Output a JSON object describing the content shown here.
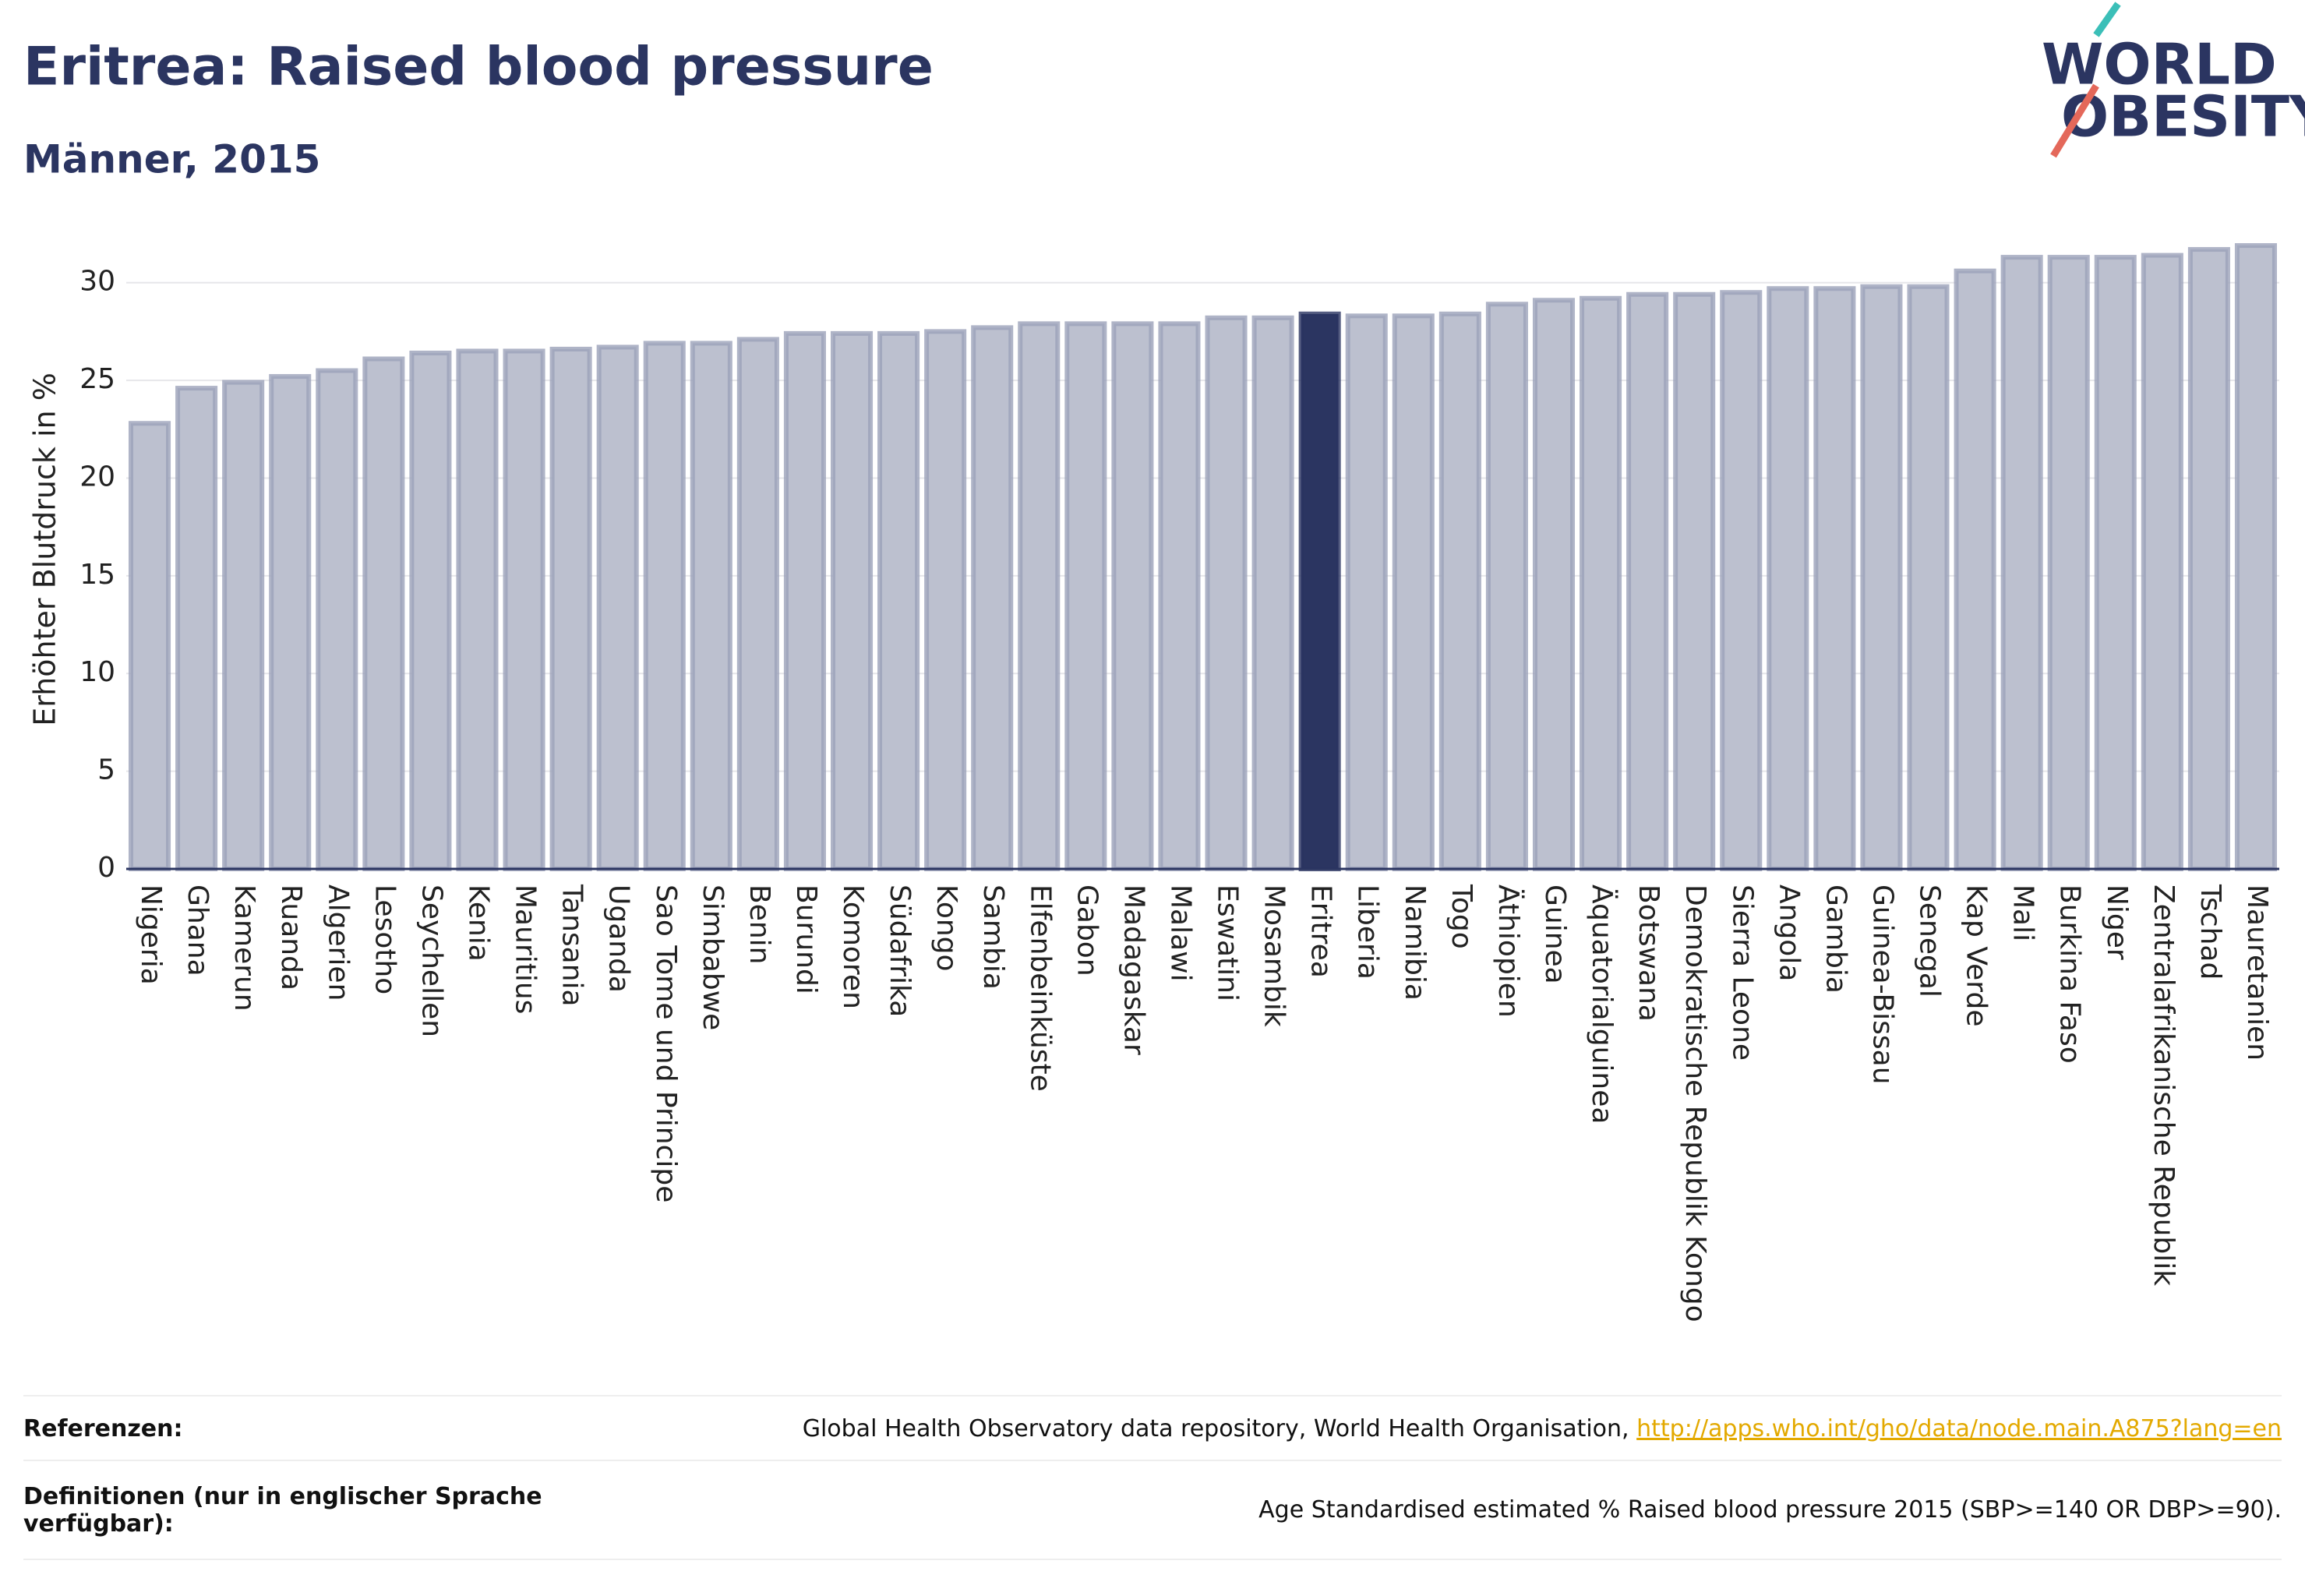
{
  "chart_data": {
    "type": "bar",
    "title": "Eritrea: Raised blood pressure",
    "subtitle": "Männer, 2015",
    "y_label": "Erhöhter Blutdruck in %",
    "categories": [
      "Nigeria",
      "Ghana",
      "Kamerun",
      "Ruanda",
      "Algerien",
      "Lesotho",
      "Seychellen",
      "Kenia",
      "Mauritius",
      "Tansania",
      "Uganda",
      "Sao Tome und Principe",
      "Simbabwe",
      "Benin",
      "Burundi",
      "Komoren",
      "Südafrika",
      "Kongo",
      "Sambia",
      "Elfenbeinküste",
      "Gabon",
      "Madagaskar",
      "Malawi",
      "Eswatini",
      "Mosambik",
      "Eritrea",
      "Liberia",
      "Namibia",
      "Togo",
      "Äthiopien",
      "Guinea",
      "Äquatorialguinea",
      "Botswana",
      "Demokratische Republik Kongo",
      "Sierra Leone",
      "Angola",
      "Gambia",
      "Guinea-Bissau",
      "Senegal",
      "Kap Verde",
      "Mali",
      "Burkina Faso",
      "Niger",
      "Zentralafrikanische Republik",
      "Tschad",
      "Mauretanien"
    ],
    "values": [
      22.8,
      24.6,
      24.9,
      25.2,
      25.5,
      26.1,
      26.4,
      26.5,
      26.5,
      26.6,
      26.7,
      26.9,
      26.9,
      27.1,
      27.4,
      27.4,
      27.4,
      27.5,
      27.7,
      27.9,
      27.9,
      27.9,
      27.9,
      28.2,
      28.2,
      28.4,
      28.3,
      28.3,
      28.4,
      28.9,
      29.1,
      29.2,
      29.4,
      29.4,
      29.5,
      29.7,
      29.7,
      29.8,
      29.8,
      30.6,
      31.3,
      31.3,
      31.3,
      31.4,
      31.7,
      31.9
    ],
    "color": "#bcc0cf",
    "highlight": "Eritrea",
    "highlight_color": "#2b3561",
    "ylim": [
      0,
      32.5
    ],
    "yticks": [
      0,
      5,
      10,
      15,
      20,
      25,
      30
    ],
    "grid": true
  },
  "logo": {
    "line1": "WORLD",
    "line2": "OBESITY"
  },
  "footer": {
    "references": {
      "label": "Referenzen:",
      "text": "Global Health Observatory data repository, World Health Organisation,",
      "link": "http://apps.who.int/gho/data/node.main.A875?lang=en"
    },
    "definitions": {
      "label": "Definitionen (nur in englischer Sprache verfügbar):",
      "text": "Age Standardised estimated % Raised blood pressure 2015 (SBP>=140 OR DBP>=90)."
    }
  }
}
